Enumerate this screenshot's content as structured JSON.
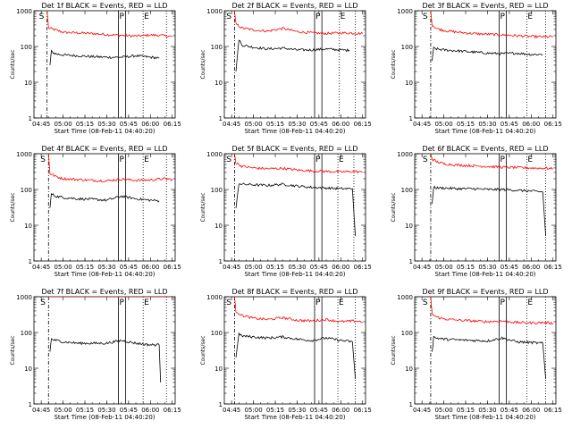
{
  "figure": {
    "xlabel": "Start Time (08-Feb-11 04:40:20)",
    "ylabel": "Counts/sec",
    "x_ticks": [
      "04:45",
      "05:00",
      "05:15",
      "05:30",
      "05:45",
      "06:00",
      "06:15"
    ],
    "y_ticks": [
      "1",
      "10",
      "100",
      "1000"
    ],
    "markers": {
      "S": "S",
      "P": "P",
      "E": "E"
    }
  },
  "chart_data": [
    {
      "type": "line",
      "title": "Det 1f BLACK = Events, RED = LLD",
      "xlabel": "Start Time (08-Feb-11 04:40:20)",
      "ylabel": "Counts/sec",
      "ylog": true,
      "ylim": [
        1,
        1000
      ],
      "xlim": [
        "04:40",
        "06:17"
      ],
      "series": [
        {
          "name": "LLD",
          "color": "#ff0000",
          "x": [
            "04:49",
            "04:50",
            "04:55",
            "05:00",
            "05:10",
            "05:20",
            "05:30",
            "05:40",
            "05:50",
            "06:00",
            "06:10",
            "06:15"
          ],
          "y": [
            1000,
            330,
            290,
            250,
            240,
            230,
            215,
            205,
            195,
            210,
            200,
            190
          ]
        },
        {
          "name": "Events",
          "color": "#000000",
          "x": [
            "04:51",
            "04:52",
            "04:55",
            "05:00",
            "05:10",
            "05:20",
            "05:30",
            "05:40",
            "05:50",
            "06:00",
            "06:06"
          ],
          "y": [
            30,
            72,
            62,
            58,
            55,
            52,
            50,
            50,
            55,
            50,
            47
          ]
        }
      ],
      "vlines": {
        "S": "04:49",
        "P1": "05:38",
        "P2": "05:43",
        "E1": "05:55",
        "E2": "06:11"
      }
    },
    {
      "type": "line",
      "title": "Det 2f BLACK = Events, RED = LLD",
      "xlabel": "Start Time (08-Feb-11 04:40:20)",
      "ylabel": "Counts/sec",
      "ylog": true,
      "ylim": [
        1,
        1000
      ],
      "xlim": [
        "04:40",
        "06:17"
      ],
      "series": [
        {
          "name": "LLD",
          "color": "#ff0000",
          "x": [
            "04:47",
            "04:48",
            "04:52",
            "05:00",
            "05:10",
            "05:20",
            "05:30",
            "05:40",
            "05:50",
            "06:00",
            "06:10",
            "06:15"
          ],
          "y": [
            1000,
            420,
            330,
            290,
            270,
            320,
            260,
            240,
            230,
            240,
            235,
            230
          ]
        },
        {
          "name": "Events",
          "color": "#000000",
          "x": [
            "04:48",
            "04:50",
            "04:52",
            "05:00",
            "05:10",
            "05:20",
            "05:30",
            "05:40",
            "05:50",
            "06:00",
            "06:06"
          ],
          "y": [
            20,
            160,
            110,
            95,
            85,
            90,
            80,
            80,
            85,
            80,
            78
          ]
        }
      ],
      "vlines": {
        "S": "04:47",
        "P1": "05:42",
        "P2": "05:47",
        "E1": "05:59",
        "E2": "06:10"
      }
    },
    {
      "type": "line",
      "title": "Det 3f BLACK = Events, RED = LLD",
      "xlabel": "Start Time (08-Feb-11 04:40:20)",
      "ylabel": "Counts/sec",
      "ylog": true,
      "ylim": [
        1,
        1000
      ],
      "xlim": [
        "04:40",
        "06:17"
      ],
      "series": [
        {
          "name": "LLD",
          "color": "#ff0000",
          "x": [
            "04:51",
            "04:52",
            "04:55",
            "05:00",
            "05:10",
            "05:20",
            "05:30",
            "05:40",
            "05:50",
            "06:00",
            "06:10",
            "06:15"
          ],
          "y": [
            1000,
            400,
            320,
            280,
            250,
            230,
            220,
            210,
            200,
            190,
            185,
            190
          ]
        },
        {
          "name": "Events",
          "color": "#000000",
          "x": [
            "04:52",
            "04:53",
            "04:55",
            "05:00",
            "05:10",
            "05:20",
            "05:30",
            "05:40",
            "05:50",
            "06:00",
            "06:08"
          ],
          "y": [
            40,
            90,
            85,
            80,
            75,
            70,
            65,
            63,
            65,
            60,
            60
          ]
        }
      ],
      "vlines": {
        "S": "04:51",
        "P1": "05:38",
        "P2": "05:43",
        "E1": "05:57",
        "E2": "06:10"
      }
    },
    {
      "type": "line",
      "title": "Det 4f BLACK = Events, RED = LLD",
      "xlabel": "Start Time (08-Feb-11 04:40:20)",
      "ylabel": "Counts/sec",
      "ylog": true,
      "ylim": [
        1,
        1000
      ],
      "xlim": [
        "04:40",
        "06:17"
      ],
      "series": [
        {
          "name": "LLD",
          "color": "#ff0000",
          "x": [
            "04:50",
            "04:51",
            "04:55",
            "05:00",
            "05:10",
            "05:20",
            "05:30",
            "05:40",
            "05:50",
            "06:00",
            "06:10",
            "06:15"
          ],
          "y": [
            1000,
            280,
            230,
            200,
            190,
            180,
            175,
            195,
            180,
            185,
            200,
            190
          ]
        },
        {
          "name": "Events",
          "color": "#000000",
          "x": [
            "04:51",
            "04:52",
            "04:55",
            "05:00",
            "05:10",
            "05:20",
            "05:30",
            "05:40",
            "05:50",
            "06:00",
            "06:06"
          ],
          "y": [
            30,
            75,
            65,
            60,
            55,
            53,
            50,
            65,
            55,
            50,
            48
          ]
        }
      ],
      "vlines": {
        "S": "04:50",
        "P1": "05:38",
        "P2": "05:43",
        "E1": "05:55",
        "E2": "06:11"
      }
    },
    {
      "type": "line",
      "title": "Det 5f BLACK = Events, RED = LLD",
      "xlabel": "Start Time (08-Feb-11 04:40:20)",
      "ylabel": "Counts/sec",
      "ylog": true,
      "ylim": [
        1,
        1000
      ],
      "xlim": [
        "04:40",
        "06:17"
      ],
      "series": [
        {
          "name": "LLD",
          "color": "#ff0000",
          "x": [
            "04:47",
            "04:48",
            "04:52",
            "05:00",
            "05:10",
            "05:20",
            "05:30",
            "05:40",
            "05:50",
            "06:00",
            "06:10",
            "06:15"
          ],
          "y": [
            1000,
            550,
            450,
            400,
            380,
            390,
            350,
            330,
            320,
            310,
            320,
            300
          ]
        },
        {
          "name": "Events",
          "color": "#000000",
          "x": [
            "04:48",
            "04:50",
            "04:52",
            "05:00",
            "05:10",
            "05:20",
            "05:30",
            "05:40",
            "05:50",
            "06:00",
            "06:08",
            "06:10"
          ],
          "y": [
            30,
            150,
            140,
            135,
            130,
            140,
            125,
            115,
            110,
            105,
            105,
            5
          ]
        }
      ],
      "vlines": {
        "S": "04:47",
        "P1": "05:42",
        "P2": "05:47",
        "E1": "05:58",
        "E2": "06:09"
      }
    },
    {
      "type": "line",
      "title": "Det 6f BLACK = Events, RED = LLD",
      "xlabel": "Start Time (08-Feb-11 04:40:20)",
      "ylabel": "Counts/sec",
      "ylog": true,
      "ylim": [
        1,
        1000
      ],
      "xlim": [
        "04:40",
        "06:17"
      ],
      "series": [
        {
          "name": "LLD",
          "color": "#ff0000",
          "x": [
            "04:51",
            "04:52",
            "04:55",
            "05:00",
            "05:10",
            "05:20",
            "05:30",
            "05:40",
            "05:50",
            "06:00",
            "06:10",
            "06:15"
          ],
          "y": [
            1000,
            700,
            600,
            520,
            480,
            460,
            440,
            420,
            410,
            400,
            390,
            380
          ]
        },
        {
          "name": "Events",
          "color": "#000000",
          "x": [
            "04:52",
            "04:53",
            "04:55",
            "05:00",
            "05:10",
            "05:20",
            "05:30",
            "05:40",
            "05:50",
            "06:00",
            "06:08",
            "06:10"
          ],
          "y": [
            40,
            120,
            110,
            110,
            105,
            105,
            100,
            100,
            95,
            90,
            85,
            5
          ]
        }
      ],
      "vlines": {
        "S": "04:51",
        "P1": "05:38",
        "P2": "05:43",
        "E1": "05:57",
        "E2": "06:10"
      }
    },
    {
      "type": "line",
      "title": "Det 7f BLACK = Events, RED = LLD",
      "xlabel": "Start Time (08-Feb-11 04:40:20)",
      "ylabel": "Counts/sec",
      "ylog": true,
      "ylim": [
        1,
        1000
      ],
      "xlim": [
        "04:40",
        "06:17"
      ],
      "series": [
        {
          "name": "LLD",
          "color": "#ff0000",
          "x": [
            "04:49",
            "04:55",
            "05:00",
            "05:10",
            "05:20",
            "05:30",
            "05:40",
            "05:50",
            "06:00",
            "06:10",
            "06:15"
          ],
          "y": [
            1000,
            1000,
            1000,
            1000,
            1000,
            1000,
            1000,
            1000,
            1000,
            1000,
            1000
          ]
        },
        {
          "name": "Events",
          "color": "#000000",
          "x": [
            "04:51",
            "04:52",
            "04:55",
            "05:00",
            "05:10",
            "05:20",
            "05:30",
            "05:40",
            "05:50",
            "06:00",
            "06:06",
            "06:07"
          ],
          "y": [
            30,
            65,
            60,
            55,
            50,
            50,
            50,
            60,
            50,
            45,
            45,
            4
          ]
        }
      ],
      "vlines": {
        "S": "04:50",
        "P1": "05:38",
        "P2": "05:43",
        "E1": "05:55",
        "E2": "06:11"
      }
    },
    {
      "type": "line",
      "title": "Det 8f BLACK = Events, RED = LLD",
      "xlabel": "Start Time (08-Feb-11 04:40:20)",
      "ylabel": "Counts/sec",
      "ylog": true,
      "ylim": [
        1,
        1000
      ],
      "xlim": [
        "04:40",
        "06:17"
      ],
      "series": [
        {
          "name": "LLD",
          "color": "#ff0000",
          "x": [
            "04:47",
            "04:48",
            "04:52",
            "05:00",
            "05:10",
            "05:20",
            "05:30",
            "05:40",
            "05:50",
            "06:00",
            "06:10",
            "06:15"
          ],
          "y": [
            1000,
            400,
            300,
            250,
            230,
            260,
            220,
            210,
            230,
            200,
            210,
            200
          ]
        },
        {
          "name": "Events",
          "color": "#000000",
          "x": [
            "04:48",
            "04:50",
            "04:52",
            "05:00",
            "05:10",
            "05:20",
            "05:30",
            "05:40",
            "05:50",
            "06:00",
            "06:08",
            "06:10"
          ],
          "y": [
            20,
            90,
            80,
            75,
            70,
            75,
            65,
            60,
            70,
            60,
            55,
            5
          ]
        }
      ],
      "vlines": {
        "S": "04:47",
        "P1": "05:42",
        "P2": "05:47",
        "E1": "05:58",
        "E2": "06:10"
      }
    },
    {
      "type": "line",
      "title": "Det 9f BLACK = Events, RED = LLD",
      "xlabel": "Start Time (08-Feb-11 04:40:20)",
      "ylabel": "Counts/sec",
      "ylog": true,
      "ylim": [
        1,
        1000
      ],
      "xlim": [
        "04:40",
        "06:17"
      ],
      "series": [
        {
          "name": "LLD",
          "color": "#ff0000",
          "x": [
            "04:51",
            "04:52",
            "04:55",
            "05:00",
            "05:10",
            "05:20",
            "05:30",
            "05:40",
            "05:50",
            "06:00",
            "06:10",
            "06:15"
          ],
          "y": [
            1000,
            330,
            270,
            240,
            220,
            210,
            200,
            210,
            190,
            185,
            190,
            180
          ]
        },
        {
          "name": "Events",
          "color": "#000000",
          "x": [
            "04:52",
            "04:53",
            "04:55",
            "05:00",
            "05:10",
            "05:20",
            "05:30",
            "05:40",
            "05:50",
            "06:00",
            "06:08",
            "06:10"
          ],
          "y": [
            30,
            75,
            70,
            65,
            62,
            60,
            58,
            70,
            55,
            52,
            50,
            5
          ]
        }
      ],
      "vlines": {
        "S": "04:51",
        "P1": "05:38",
        "P2": "05:43",
        "E1": "05:57",
        "E2": "06:10"
      }
    }
  ]
}
